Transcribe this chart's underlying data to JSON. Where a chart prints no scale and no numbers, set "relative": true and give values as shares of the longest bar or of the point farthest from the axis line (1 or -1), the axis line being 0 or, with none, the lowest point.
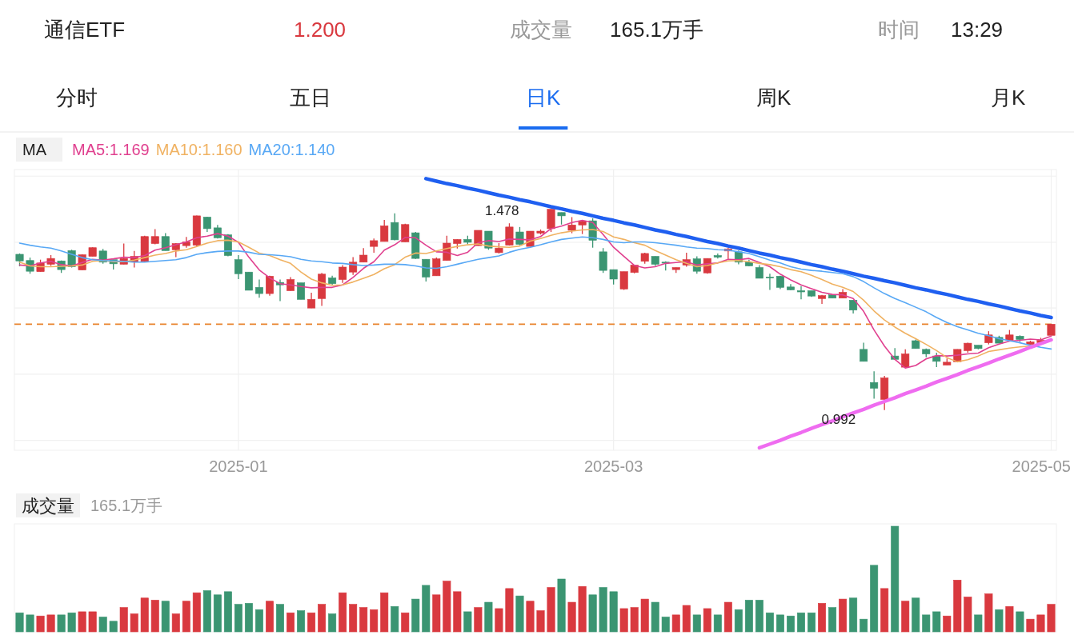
{
  "chart_data": [
    {
      "type": "candlestick",
      "annotations": [
        "通信ETF",
        "1.200",
        "成交量",
        "165.1万手",
        "时间",
        "13:29",
        "分时",
        "五日",
        "日K",
        "周K",
        "月K",
        "1.478",
        "0.992"
      ],
      "legend_title": "MA",
      "legend": "top left",
      "categories": [
        null,
        null,
        null,
        null,
        null,
        null,
        null,
        null,
        null,
        null,
        null,
        null,
        null,
        null,
        null,
        null,
        null,
        null,
        null,
        null,
        null,
        "2025-01",
        null,
        null,
        null,
        null,
        null,
        null,
        null,
        null,
        null,
        null,
        null,
        null,
        null,
        null,
        null,
        null,
        null,
        null,
        null,
        null,
        null,
        null,
        null,
        null,
        null,
        null,
        null,
        null,
        null,
        null,
        null,
        null,
        null,
        null,
        null,
        "2025-03",
        null,
        null,
        null,
        null,
        null,
        null,
        null,
        null,
        null,
        null,
        null,
        null,
        null,
        null,
        null,
        null,
        null,
        null,
        null,
        null,
        null,
        null,
        null,
        null,
        null,
        null,
        null,
        null,
        null,
        null,
        null,
        null,
        null,
        null,
        null,
        null,
        null,
        null,
        null,
        null,
        null,
        "2025-05"
      ],
      "ylim": [
        0.895,
        1.574
      ],
      "yticks": [
        {
          "value": 1.558,
          "label": null
        },
        {
          "value": 1.398,
          "label": null
        },
        {
          "value": 1.239,
          "label": null
        },
        {
          "value": 1.079,
          "label": null
        },
        {
          "value": 0.919,
          "label": null
        }
      ],
      "tick_labels": "x",
      "grid": true,
      "ref_lines": [
        {
          "axis": "y",
          "value": 1.2,
          "color": "#e8822a",
          "line_style": "dashed"
        }
      ],
      "ohlc": [
        [
          1.369,
          1.371,
          1.34,
          1.353
        ],
        [
          1.354,
          1.361,
          1.322,
          1.328
        ],
        [
          1.327,
          1.356,
          1.327,
          1.348
        ],
        [
          1.345,
          1.367,
          1.341,
          1.359
        ],
        [
          1.353,
          1.354,
          1.324,
          1.332
        ],
        [
          1.378,
          1.38,
          1.337,
          1.339
        ],
        [
          1.331,
          1.369,
          1.331,
          1.368
        ],
        [
          1.364,
          1.386,
          1.364,
          1.385
        ],
        [
          1.377,
          1.382,
          1.346,
          1.35
        ],
        [
          1.356,
          1.356,
          1.332,
          1.346
        ],
        [
          1.345,
          1.395,
          1.345,
          1.359
        ],
        [
          1.35,
          1.377,
          1.337,
          1.364
        ],
        [
          1.352,
          1.414,
          1.352,
          1.412
        ],
        [
          1.395,
          1.43,
          1.393,
          1.412
        ],
        [
          1.412,
          1.42,
          1.378,
          1.378
        ],
        [
          1.38,
          1.396,
          1.362,
          1.395
        ],
        [
          1.39,
          1.411,
          1.385,
          1.399
        ],
        [
          1.391,
          1.463,
          1.388,
          1.462
        ],
        [
          1.459,
          1.46,
          1.423,
          1.431
        ],
        [
          1.433,
          1.44,
          1.407,
          1.409
        ],
        [
          1.416,
          1.418,
          1.364,
          1.366
        ],
        [
          1.356,
          1.367,
          1.309,
          1.322
        ],
        [
          1.326,
          1.326,
          1.282,
          1.282
        ],
        [
          1.289,
          1.308,
          1.264,
          1.274
        ],
        [
          1.274,
          1.317,
          1.269,
          1.316
        ],
        [
          1.301,
          1.308,
          1.256,
          1.295
        ],
        [
          1.281,
          1.314,
          1.281,
          1.308
        ],
        [
          1.3,
          1.3,
          1.26,
          1.26
        ],
        [
          1.239,
          1.276,
          1.239,
          1.26
        ],
        [
          1.262,
          1.324,
          1.244,
          1.321
        ],
        [
          1.312,
          1.317,
          1.295,
          1.298
        ],
        [
          1.308,
          1.343,
          1.3,
          1.338
        ],
        [
          1.326,
          1.362,
          1.319,
          1.35
        ],
        [
          1.35,
          1.384,
          1.35,
          1.367
        ],
        [
          1.388,
          1.407,
          1.373,
          1.402
        ],
        [
          1.4,
          1.452,
          1.4,
          1.438
        ],
        [
          1.446,
          1.468,
          1.403,
          1.404
        ],
        [
          1.399,
          1.443,
          1.399,
          1.441
        ],
        [
          1.421,
          1.423,
          1.358,
          1.359
        ],
        [
          1.357,
          1.357,
          1.303,
          1.314
        ],
        [
          1.317,
          1.361,
          1.317,
          1.358
        ],
        [
          1.354,
          1.414,
          1.354,
          1.396
        ],
        [
          1.395,
          1.405,
          1.383,
          1.405
        ],
        [
          1.405,
          1.414,
          1.393,
          1.398
        ],
        [
          1.39,
          1.427,
          1.39,
          1.427
        ],
        [
          1.425,
          1.425,
          1.38,
          1.384
        ],
        [
          1.373,
          1.396,
          1.371,
          1.384
        ],
        [
          1.391,
          1.444,
          1.39,
          1.435
        ],
        [
          1.423,
          1.435,
          1.391,
          1.393
        ],
        [
          1.388,
          1.425,
          1.388,
          1.425
        ],
        [
          1.42,
          1.429,
          1.417,
          1.425
        ],
        [
          1.431,
          1.478,
          1.423,
          1.478
        ],
        [
          1.47,
          1.47,
          1.441,
          1.462
        ],
        [
          1.427,
          1.459,
          1.42,
          1.44
        ],
        [
          1.44,
          1.452,
          1.418,
          1.449
        ],
        [
          1.45,
          1.456,
          1.385,
          1.403
        ],
        [
          1.375,
          1.384,
          1.324,
          1.33
        ],
        [
          1.332,
          1.332,
          1.296,
          1.309
        ],
        [
          1.285,
          1.327,
          1.283,
          1.327
        ],
        [
          1.325,
          1.343,
          1.323,
          1.343
        ],
        [
          1.352,
          1.373,
          1.346,
          1.371
        ],
        [
          1.364,
          1.364,
          1.341,
          1.345
        ],
        [
          1.35,
          1.352,
          1.33,
          1.348
        ],
        [
          1.332,
          1.337,
          1.324,
          1.337
        ],
        [
          1.343,
          1.373,
          1.339,
          1.356
        ],
        [
          1.358,
          1.364,
          1.322,
          1.328
        ],
        [
          1.324,
          1.359,
          1.322,
          1.359
        ],
        [
          1.366,
          1.371,
          1.359,
          1.362
        ],
        [
          1.377,
          1.385,
          1.356,
          1.382
        ],
        [
          1.375,
          1.378,
          1.345,
          1.35
        ],
        [
          1.35,
          1.356,
          1.34,
          1.341
        ],
        [
          1.337,
          1.343,
          1.311,
          1.311
        ],
        [
          1.314,
          1.322,
          1.283,
          1.313
        ],
        [
          1.316,
          1.317,
          1.285,
          1.289
        ],
        [
          1.29,
          1.297,
          1.282,
          1.283
        ],
        [
          1.281,
          1.292,
          1.26,
          1.278
        ],
        [
          1.281,
          1.281,
          1.266,
          1.268
        ],
        [
          1.262,
          1.271,
          1.249,
          1.269
        ],
        [
          1.271,
          1.271,
          1.263,
          1.263
        ],
        [
          1.263,
          1.285,
          1.263,
          1.277
        ],
        [
          1.258,
          1.258,
          1.226,
          1.234
        ],
        [
          1.139,
          1.155,
          1.11,
          1.11
        ],
        [
          1.059,
          1.086,
          1.02,
          1.045
        ],
        [
          1.018,
          1.075,
          0.992,
          1.07
        ],
        [
          1.123,
          1.142,
          1.114,
          1.115
        ],
        [
          1.096,
          1.139,
          1.095,
          1.128
        ],
        [
          1.16,
          1.163,
          1.141,
          1.141
        ],
        [
          1.139,
          1.141,
          1.12,
          1.128
        ],
        [
          1.123,
          1.131,
          1.096,
          1.11
        ],
        [
          1.101,
          1.117,
          1.101,
          1.108
        ],
        [
          1.109,
          1.139,
          1.108,
          1.139
        ],
        [
          1.136,
          1.155,
          1.131,
          1.154
        ],
        [
          1.149,
          1.149,
          1.139,
          1.141
        ],
        [
          1.155,
          1.183,
          1.151,
          1.174
        ],
        [
          1.168,
          1.172,
          1.154,
          1.154
        ],
        [
          1.161,
          1.186,
          1.161,
          1.174
        ],
        [
          1.171,
          1.173,
          1.157,
          1.163
        ],
        [
          1.151,
          1.16,
          1.151,
          1.157
        ],
        [
          1.155,
          1.167,
          1.154,
          1.161
        ],
        [
          1.173,
          1.2,
          1.173,
          1.2
        ]
      ],
      "colors": [
        "#3b9572",
        "#3b9572",
        "#d9393f",
        "#d9393f",
        "#3b9572",
        "#3b9572",
        "#d9393f",
        "#d9393f",
        "#3b9572",
        "#3b9572",
        "#d9393f",
        "#d9393f",
        "#d9393f",
        "#d9393f",
        "#3b9572",
        "#d9393f",
        "#d9393f",
        "#d9393f",
        "#3b9572",
        "#3b9572",
        "#3b9572",
        "#3b9572",
        "#3b9572",
        "#3b9572",
        "#d9393f",
        "#3b9572",
        "#d9393f",
        "#3b9572",
        "#d9393f",
        "#d9393f",
        "#3b9572",
        "#d9393f",
        "#d9393f",
        "#d9393f",
        "#d9393f",
        "#d9393f",
        "#3b9572",
        "#d9393f",
        "#3b9572",
        "#3b9572",
        "#d9393f",
        "#d9393f",
        "#d9393f",
        "#3b9572",
        "#d9393f",
        "#3b9572",
        "#d9393f",
        "#d9393f",
        "#3b9572",
        "#d9393f",
        "#d9393f",
        "#d9393f",
        "#3b9572",
        "#d9393f",
        "#d9393f",
        "#3b9572",
        "#3b9572",
        "#3b9572",
        "#d9393f",
        "#d9393f",
        "#d9393f",
        "#3b9572",
        "#3b9572",
        "#d9393f",
        "#d9393f",
        "#3b9572",
        "#d9393f",
        "#3b9572",
        "#d9393f",
        "#3b9572",
        "#3b9572",
        "#3b9572",
        "#3b9572",
        "#3b9572",
        "#3b9572",
        "#3b9572",
        "#3b9572",
        "#d9393f",
        "#3b9572",
        "#d9393f",
        "#3b9572",
        "#3b9572",
        "#3b9572",
        "#d9393f",
        "#3b9572",
        "#d9393f",
        "#3b9572",
        "#3b9572",
        "#3b9572",
        "#d9393f",
        "#d9393f",
        "#d9393f",
        "#3b9572",
        "#d9393f",
        "#3b9572",
        "#d9393f",
        "#3b9572",
        "#d9393f",
        "#d9393f",
        "#d9393f"
      ],
      "series": [
        {
          "type": "line",
          "name": "MA5:1.169",
          "color": "#e0408f",
          "values": [
            1.343,
            1.341,
            1.348,
            1.352,
            1.344,
            1.341,
            1.349,
            1.357,
            1.355,
            1.358,
            1.362,
            1.361,
            1.366,
            1.379,
            1.385,
            1.392,
            1.399,
            1.409,
            1.413,
            1.419,
            1.413,
            1.398,
            1.362,
            1.331,
            1.312,
            1.298,
            1.295,
            1.291,
            1.288,
            1.289,
            1.289,
            1.295,
            1.313,
            1.335,
            1.351,
            1.379,
            1.392,
            1.41,
            1.409,
            1.391,
            1.375,
            1.374,
            1.366,
            1.374,
            1.397,
            1.402,
            1.4,
            1.406,
            1.405,
            1.404,
            1.412,
            1.431,
            1.437,
            1.446,
            1.451,
            1.446,
            1.417,
            1.386,
            1.364,
            1.342,
            1.336,
            1.339,
            1.347,
            1.349,
            1.351,
            1.343,
            1.346,
            1.348,
            1.357,
            1.356,
            1.359,
            1.349,
            1.339,
            1.321,
            1.307,
            1.295,
            1.286,
            1.277,
            1.272,
            1.271,
            1.262,
            1.231,
            1.186,
            1.147,
            1.115,
            1.094,
            1.1,
            1.116,
            1.124,
            1.123,
            1.125,
            1.128,
            1.13,
            1.143,
            1.152,
            1.159,
            1.161,
            1.164,
            1.162,
            1.171
          ]
        },
        {
          "type": "line",
          "name": "MA10:1.160",
          "color": "#f0b262",
          "values": [
            1.35,
            1.341,
            1.339,
            1.339,
            1.34,
            1.341,
            1.343,
            1.352,
            1.354,
            1.351,
            1.351,
            1.355,
            1.361,
            1.367,
            1.371,
            1.377,
            1.38,
            1.388,
            1.396,
            1.402,
            1.403,
            1.399,
            1.386,
            1.372,
            1.366,
            1.356,
            1.347,
            1.326,
            1.309,
            1.3,
            1.294,
            1.295,
            1.302,
            1.311,
            1.32,
            1.334,
            1.344,
            1.362,
            1.372,
            1.371,
            1.377,
            1.383,
            1.388,
            1.392,
            1.394,
            1.389,
            1.387,
            1.386,
            1.389,
            1.401,
            1.407,
            1.415,
            1.421,
            1.425,
            1.428,
            1.429,
            1.424,
            1.411,
            1.405,
            1.397,
            1.391,
            1.378,
            1.367,
            1.356,
            1.347,
            1.339,
            1.342,
            1.348,
            1.353,
            1.354,
            1.351,
            1.347,
            1.344,
            1.339,
            1.332,
            1.327,
            1.318,
            1.308,
            1.297,
            1.289,
            1.279,
            1.258,
            1.232,
            1.21,
            1.193,
            1.178,
            1.165,
            1.151,
            1.136,
            1.119,
            1.109,
            1.114,
            1.123,
            1.134,
            1.138,
            1.142,
            1.145,
            1.147,
            1.153,
            1.162
          ]
        },
        {
          "type": "line",
          "name": "MA20:1.140",
          "color": "#58a8f5",
          "values": [
            1.396,
            1.391,
            1.387,
            1.384,
            1.377,
            1.369,
            1.361,
            1.356,
            1.354,
            1.353,
            1.352,
            1.35,
            1.35,
            1.352,
            1.354,
            1.356,
            1.361,
            1.369,
            1.373,
            1.376,
            1.377,
            1.377,
            1.374,
            1.369,
            1.368,
            1.366,
            1.363,
            1.357,
            1.353,
            1.351,
            1.348,
            1.347,
            1.344,
            1.342,
            1.343,
            1.345,
            1.345,
            1.344,
            1.341,
            1.336,
            1.335,
            1.339,
            1.345,
            1.351,
            1.357,
            1.361,
            1.365,
            1.374,
            1.381,
            1.386,
            1.392,
            1.399,
            1.405,
            1.408,
            1.411,
            1.409,
            1.405,
            1.399,
            1.397,
            1.399,
            1.399,
            1.397,
            1.394,
            1.391,
            1.387,
            1.384,
            1.383,
            1.38,
            1.379,
            1.375,
            1.371,
            1.363,
            1.355,
            1.348,
            1.339,
            1.333,
            1.33,
            1.328,
            1.325,
            1.322,
            1.315,
            1.303,
            1.288,
            1.274,
            1.262,
            1.252,
            1.241,
            1.23,
            1.216,
            1.204,
            1.194,
            1.186,
            1.178,
            1.172,
            1.165,
            1.16,
            1.155,
            1.149,
            1.144,
            1.14
          ]
        },
        {
          "type": "line",
          "color": "#1f5ff0",
          "values": [
            null,
            null,
            null,
            null,
            null,
            null,
            null,
            null,
            null,
            null,
            null,
            null,
            null,
            null,
            null,
            null,
            null,
            null,
            null,
            null,
            null,
            null,
            null,
            null,
            null,
            null,
            null,
            null,
            null,
            null,
            null,
            null,
            null,
            null,
            null,
            null,
            null,
            null,
            null,
            1.552,
            1.546,
            1.54,
            1.535,
            1.529,
            1.524,
            1.518,
            1.512,
            1.507,
            1.501,
            1.496,
            1.49,
            1.484,
            1.479,
            1.473,
            1.468,
            1.462,
            1.456,
            1.451,
            1.445,
            1.44,
            1.434,
            1.428,
            1.423,
            1.417,
            1.412,
            1.406,
            1.4,
            1.395,
            1.389,
            1.384,
            1.378,
            1.372,
            1.367,
            1.361,
            1.356,
            1.35,
            1.344,
            1.339,
            1.333,
            1.328,
            1.322,
            1.316,
            1.311,
            1.305,
            1.3,
            1.294,
            1.288,
            1.283,
            1.277,
            1.272,
            1.266,
            1.26,
            1.255,
            1.249,
            1.244,
            1.238,
            1.232,
            1.227,
            1.221,
            1.216
          ]
        },
        {
          "type": "line",
          "color": "#ef6cf0",
          "values": [
            null,
            null,
            null,
            null,
            null,
            null,
            null,
            null,
            null,
            null,
            null,
            null,
            null,
            null,
            null,
            null,
            null,
            null,
            null,
            null,
            null,
            null,
            null,
            null,
            null,
            null,
            null,
            null,
            null,
            null,
            null,
            null,
            null,
            null,
            null,
            null,
            null,
            null,
            null,
            null,
            null,
            null,
            null,
            null,
            null,
            null,
            null,
            null,
            null,
            null,
            null,
            null,
            null,
            null,
            null,
            null,
            null,
            null,
            null,
            null,
            null,
            null,
            null,
            null,
            null,
            null,
            null,
            null,
            null,
            null,
            null,
            0.901,
            0.91,
            0.919,
            0.929,
            0.938,
            0.948,
            0.957,
            0.966,
            0.976,
            0.985,
            0.994,
            1.004,
            1.013,
            1.022,
            1.032,
            1.041,
            1.05,
            1.06,
            1.069,
            1.078,
            1.088,
            1.097,
            1.106,
            1.116,
            1.125,
            1.134,
            1.144,
            1.153,
            1.162
          ]
        }
      ]
    },
    {
      "type": "bar",
      "title": "成交量",
      "subtitle": "165.1万手",
      "relative": true,
      "categories": [
        null,
        null,
        null,
        null,
        null,
        null,
        null,
        null,
        null,
        null,
        null,
        null,
        null,
        null,
        null,
        null,
        null,
        null,
        null,
        null,
        null,
        null,
        null,
        null,
        null,
        null,
        null,
        null,
        null,
        null,
        null,
        null,
        null,
        null,
        null,
        null,
        null,
        null,
        null,
        null,
        null,
        null,
        null,
        null,
        null,
        null,
        null,
        null,
        null,
        null,
        null,
        null,
        null,
        null,
        null,
        null,
        null,
        null,
        null,
        null,
        null,
        null,
        null,
        null,
        null,
        null,
        null,
        null,
        null,
        null,
        null,
        null,
        null,
        null,
        null,
        null,
        null,
        null,
        null,
        null,
        null,
        null,
        null,
        null,
        null,
        null,
        null,
        null,
        null,
        null,
        null,
        null,
        null,
        null,
        null,
        null,
        null,
        null,
        null,
        null
      ],
      "values": [
        0.18,
        0.16,
        0.15,
        0.16,
        0.16,
        0.18,
        0.19,
        0.19,
        0.14,
        0.1,
        0.23,
        0.17,
        0.32,
        0.3,
        0.29,
        0.17,
        0.29,
        0.37,
        0.39,
        0.35,
        0.38,
        0.26,
        0.27,
        0.21,
        0.29,
        0.26,
        0.18,
        0.2,
        0.18,
        0.26,
        0.17,
        0.37,
        0.26,
        0.23,
        0.21,
        0.37,
        0.24,
        0.18,
        0.31,
        0.44,
        0.35,
        0.48,
        0.38,
        0.19,
        0.23,
        0.28,
        0.22,
        0.41,
        0.34,
        0.29,
        0.2,
        0.42,
        0.5,
        0.28,
        0.43,
        0.35,
        0.42,
        0.38,
        0.22,
        0.23,
        0.31,
        0.28,
        0.14,
        0.16,
        0.25,
        0.16,
        0.22,
        0.16,
        0.28,
        0.21,
        0.3,
        0.3,
        0.18,
        0.16,
        0.15,
        0.18,
        0.18,
        0.27,
        0.23,
        0.31,
        0.32,
        0.12,
        0.63,
        0.41,
        1,
        0.29,
        0.32,
        0.16,
        0.19,
        0.15,
        0.49,
        0.33,
        0.16,
        0.36,
        0.21,
        0.24,
        0.19,
        0.12,
        0.16,
        0.26
      ],
      "colors": [
        "#3b9572",
        "#3b9572",
        "#d9393f",
        "#d9393f",
        "#3b9572",
        "#3b9572",
        "#d9393f",
        "#d9393f",
        "#3b9572",
        "#3b9572",
        "#d9393f",
        "#d9393f",
        "#d9393f",
        "#d9393f",
        "#3b9572",
        "#d9393f",
        "#d9393f",
        "#d9393f",
        "#3b9572",
        "#3b9572",
        "#3b9572",
        "#3b9572",
        "#3b9572",
        "#3b9572",
        "#d9393f",
        "#3b9572",
        "#d9393f",
        "#3b9572",
        "#d9393f",
        "#d9393f",
        "#3b9572",
        "#d9393f",
        "#d9393f",
        "#d9393f",
        "#d9393f",
        "#d9393f",
        "#3b9572",
        "#d9393f",
        "#3b9572",
        "#3b9572",
        "#d9393f",
        "#d9393f",
        "#d9393f",
        "#3b9572",
        "#d9393f",
        "#3b9572",
        "#d9393f",
        "#d9393f",
        "#3b9572",
        "#d9393f",
        "#d9393f",
        "#d9393f",
        "#3b9572",
        "#d9393f",
        "#d9393f",
        "#3b9572",
        "#3b9572",
        "#3b9572",
        "#d9393f",
        "#d9393f",
        "#d9393f",
        "#3b9572",
        "#3b9572",
        "#d9393f",
        "#d9393f",
        "#3b9572",
        "#d9393f",
        "#3b9572",
        "#d9393f",
        "#3b9572",
        "#3b9572",
        "#3b9572",
        "#3b9572",
        "#3b9572",
        "#3b9572",
        "#3b9572",
        "#3b9572",
        "#d9393f",
        "#3b9572",
        "#d9393f",
        "#3b9572",
        "#3b9572",
        "#3b9572",
        "#d9393f",
        "#3b9572",
        "#d9393f",
        "#3b9572",
        "#3b9572",
        "#3b9572",
        "#d9393f",
        "#d9393f",
        "#d9393f",
        "#3b9572",
        "#d9393f",
        "#3b9572",
        "#d9393f",
        "#3b9572",
        "#d9393f",
        "#d9393f",
        "#d9393f"
      ]
    }
  ]
}
